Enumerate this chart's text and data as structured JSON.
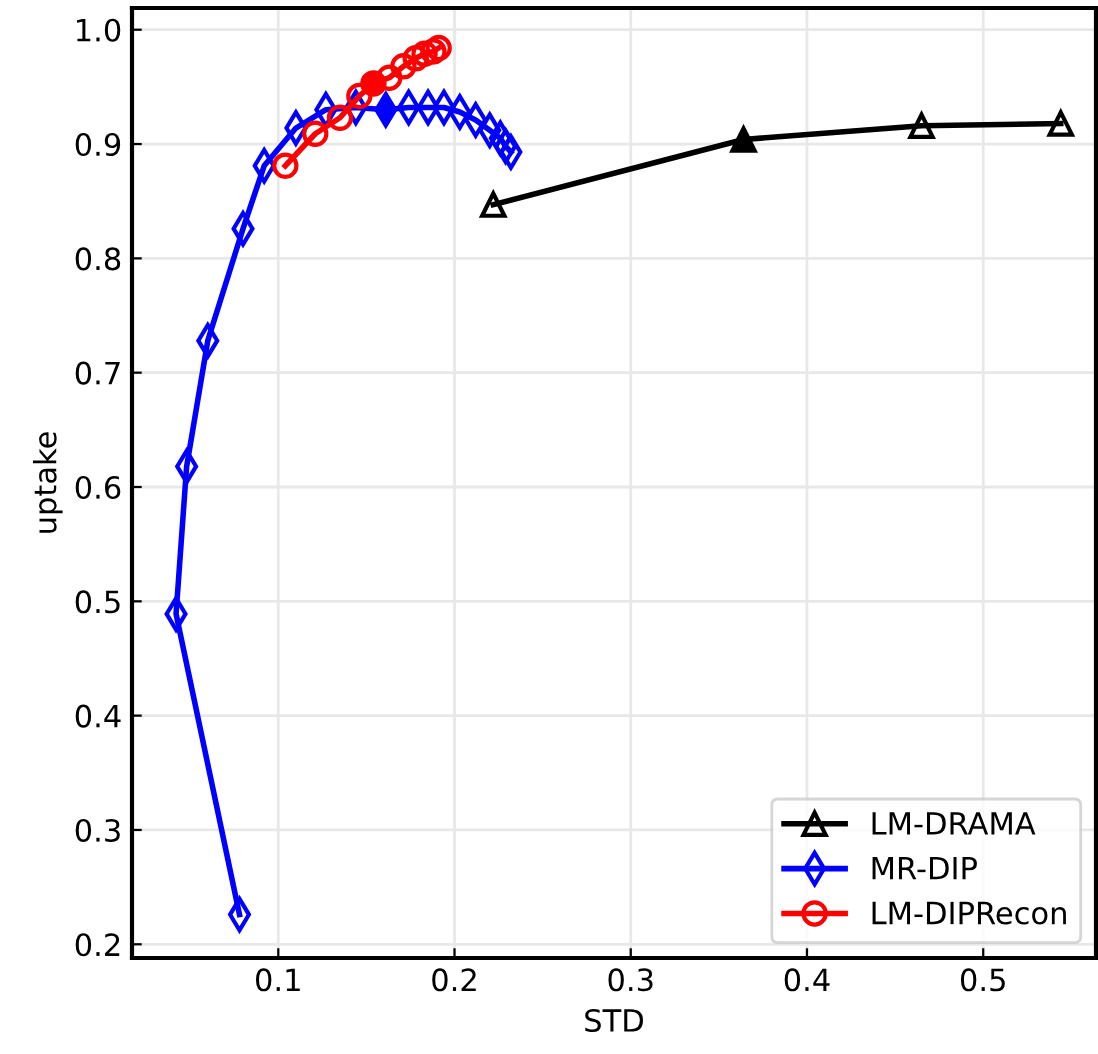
{
  "chart_data": {
    "type": "line",
    "xlabel": "STD",
    "ylabel": "uptake",
    "xlim": [
      0.017,
      0.564
    ],
    "ylim": [
      0.188,
      1.019
    ],
    "xticks": [
      0.1,
      0.2,
      0.3,
      0.4,
      0.5
    ],
    "yticks": [
      0.2,
      0.3,
      0.4,
      0.5,
      0.6,
      0.7,
      0.8,
      0.9,
      {
        "value": 1.0,
        "label": "1.0"
      }
    ],
    "grid": true,
    "legend": "bottom right",
    "series": [
      {
        "name": "LM-DRAMA",
        "color": "#000000",
        "marker": "triangle",
        "x": [
          0.222,
          0.364,
          0.465,
          0.544
        ],
        "values": [
          0.847,
          0.904,
          0.916,
          0.918
        ]
      },
      {
        "name": "MR-DIP",
        "color": "#0000ff",
        "marker": "diamond",
        "x": [
          0.078,
          0.042,
          0.048,
          0.06,
          0.08,
          0.092,
          0.11,
          0.127,
          0.144,
          0.161,
          0.174,
          0.185,
          0.194,
          0.203,
          0.212,
          0.22,
          0.226,
          0.229,
          0.232
        ],
        "values": [
          0.226,
          0.489,
          0.618,
          0.728,
          0.826,
          0.881,
          0.914,
          0.93,
          0.932,
          0.93,
          0.932,
          0.932,
          0.932,
          0.928,
          0.921,
          0.912,
          0.905,
          0.898,
          0.893
        ]
      },
      {
        "name": "LM-DIPRecon",
        "color": "#ff0000",
        "marker": "circle",
        "x": [
          0.104,
          0.121,
          0.135,
          0.146,
          0.154,
          0.163,
          0.171,
          0.178,
          0.183,
          0.188,
          0.191
        ],
        "values": [
          0.881,
          0.909,
          0.923,
          0.942,
          0.953,
          0.958,
          0.968,
          0.975,
          0.979,
          0.981,
          0.984
        ]
      },
      {
        "type": "scatter",
        "color": "#000000",
        "marker": "triangle",
        "x": [
          0.364
        ],
        "values": [
          0.904
        ]
      },
      {
        "type": "scatter",
        "color": "#0000ff",
        "marker": "diamond",
        "x": [
          0.161
        ],
        "values": [
          0.93
        ]
      },
      {
        "type": "scatter",
        "color": "#ff0000",
        "marker": "circle",
        "x": [
          0.154
        ],
        "values": [
          0.953
        ]
      }
    ]
  }
}
